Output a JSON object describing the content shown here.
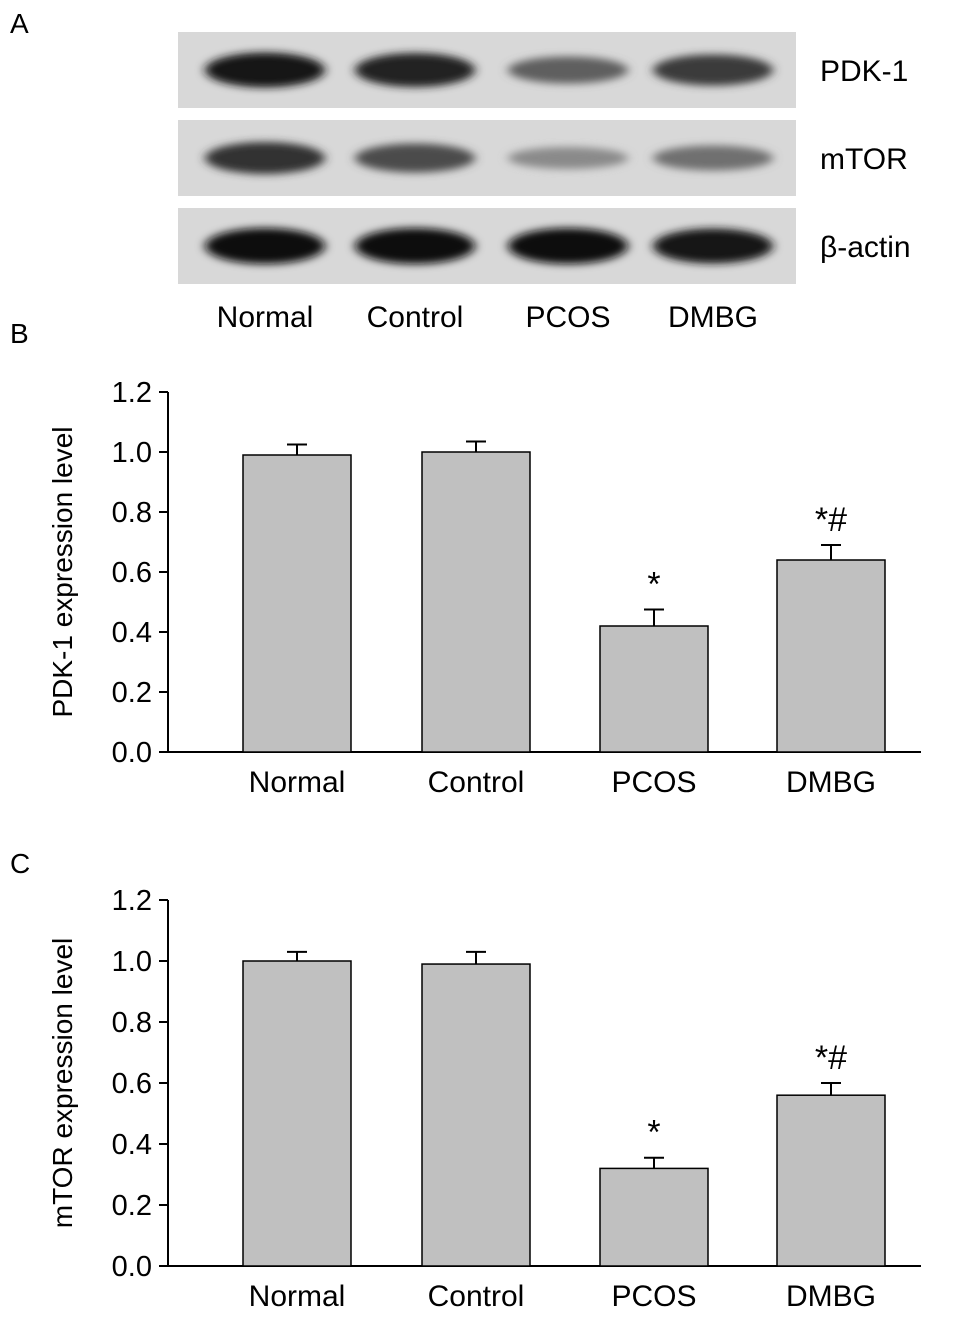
{
  "panels": {
    "a": "A",
    "b": "B",
    "c": "C"
  },
  "blot": {
    "rows": [
      {
        "label": "PDK-1",
        "intensities": [
          0.95,
          0.9,
          0.55,
          0.75
        ]
      },
      {
        "label": "mTOR",
        "intensities": [
          0.8,
          0.65,
          0.3,
          0.45
        ]
      },
      {
        "label": "β-actin",
        "intensities": [
          1.0,
          1.0,
          1.0,
          0.95
        ]
      }
    ],
    "lanes": [
      "Normal",
      "Control",
      "PCOS",
      "DMBG"
    ]
  },
  "chart_data": [
    {
      "type": "bar",
      "panel": "B",
      "categories": [
        "Normal",
        "Control",
        "PCOS",
        "DMBG"
      ],
      "values": [
        0.99,
        1.0,
        0.42,
        0.64
      ],
      "errors": [
        0.035,
        0.035,
        0.055,
        0.05
      ],
      "annotations": [
        "",
        "",
        "*",
        "*#"
      ],
      "ylabel": "PDK-1 expression level",
      "xlabel": "",
      "ylim": [
        0,
        1.2
      ],
      "yticks": [
        "0.0",
        "0.2",
        "0.4",
        "0.6",
        "0.8",
        "1.0",
        "1.2"
      ],
      "bar_color": "#c0c0c0"
    },
    {
      "type": "bar",
      "panel": "C",
      "categories": [
        "Normal",
        "Control",
        "PCOS",
        "DMBG"
      ],
      "values": [
        1.0,
        0.99,
        0.32,
        0.56
      ],
      "errors": [
        0.03,
        0.04,
        0.035,
        0.04
      ],
      "annotations": [
        "",
        "",
        "*",
        "*#"
      ],
      "ylabel": "mTOR expression level",
      "xlabel": "",
      "ylim": [
        0,
        1.2
      ],
      "yticks": [
        "0.0",
        "0.2",
        "0.4",
        "0.6",
        "0.8",
        "1.0",
        "1.2"
      ],
      "bar_color": "#c0c0c0"
    }
  ]
}
